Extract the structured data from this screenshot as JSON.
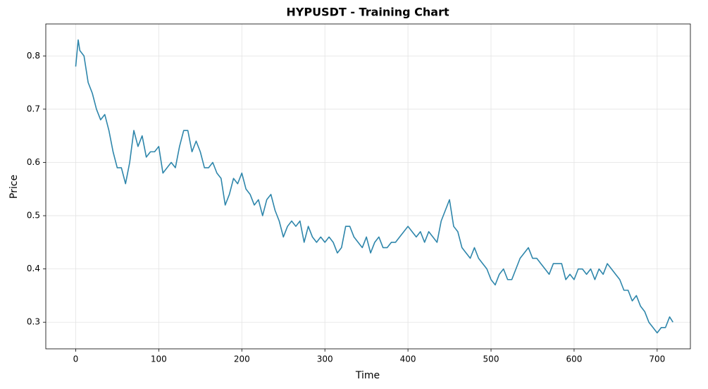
{
  "chart_data": {
    "type": "line",
    "title": "HYPUSDT - Training Chart",
    "xlabel": "Time",
    "ylabel": "Price",
    "x": [
      0,
      3,
      5,
      10,
      15,
      20,
      25,
      30,
      35,
      40,
      45,
      50,
      55,
      60,
      65,
      70,
      75,
      80,
      85,
      90,
      95,
      100,
      105,
      110,
      115,
      120,
      125,
      130,
      135,
      140,
      145,
      150,
      155,
      160,
      165,
      170,
      175,
      180,
      185,
      190,
      195,
      200,
      205,
      210,
      215,
      220,
      225,
      230,
      235,
      240,
      245,
      250,
      255,
      260,
      265,
      270,
      275,
      280,
      285,
      290,
      295,
      300,
      305,
      310,
      315,
      320,
      325,
      330,
      335,
      340,
      345,
      350,
      355,
      360,
      365,
      370,
      375,
      380,
      385,
      390,
      395,
      400,
      405,
      410,
      415,
      420,
      425,
      430,
      435,
      440,
      445,
      450,
      455,
      460,
      465,
      470,
      475,
      480,
      485,
      490,
      495,
      500,
      505,
      510,
      515,
      520,
      525,
      530,
      535,
      540,
      545,
      550,
      555,
      560,
      565,
      570,
      575,
      580,
      585,
      590,
      595,
      600,
      605,
      610,
      615,
      620,
      625,
      630,
      635,
      640,
      645,
      650,
      655,
      660,
      665,
      670,
      675,
      680,
      685,
      690,
      695,
      700,
      705,
      710,
      715,
      719
    ],
    "series": [
      {
        "name": "Price",
        "color": "#2e86ab",
        "values": [
          0.78,
          0.83,
          0.81,
          0.8,
          0.75,
          0.73,
          0.7,
          0.68,
          0.69,
          0.66,
          0.62,
          0.59,
          0.59,
          0.56,
          0.6,
          0.66,
          0.63,
          0.65,
          0.61,
          0.62,
          0.62,
          0.63,
          0.58,
          0.59,
          0.6,
          0.59,
          0.63,
          0.66,
          0.66,
          0.62,
          0.64,
          0.62,
          0.59,
          0.59,
          0.6,
          0.58,
          0.57,
          0.52,
          0.54,
          0.57,
          0.56,
          0.58,
          0.55,
          0.54,
          0.52,
          0.53,
          0.5,
          0.53,
          0.54,
          0.51,
          0.49,
          0.46,
          0.48,
          0.49,
          0.48,
          0.49,
          0.45,
          0.48,
          0.46,
          0.45,
          0.46,
          0.45,
          0.46,
          0.45,
          0.43,
          0.44,
          0.48,
          0.48,
          0.46,
          0.45,
          0.44,
          0.46,
          0.43,
          0.45,
          0.46,
          0.44,
          0.44,
          0.45,
          0.45,
          0.46,
          0.47,
          0.48,
          0.47,
          0.46,
          0.47,
          0.45,
          0.47,
          0.46,
          0.45,
          0.49,
          0.51,
          0.53,
          0.48,
          0.47,
          0.44,
          0.43,
          0.42,
          0.44,
          0.42,
          0.41,
          0.4,
          0.38,
          0.37,
          0.39,
          0.4,
          0.38,
          0.38,
          0.4,
          0.42,
          0.43,
          0.44,
          0.42,
          0.42,
          0.41,
          0.4,
          0.39,
          0.41,
          0.41,
          0.41,
          0.38,
          0.39,
          0.38,
          0.4,
          0.4,
          0.39,
          0.4,
          0.38,
          0.4,
          0.39,
          0.41,
          0.4,
          0.39,
          0.38,
          0.36,
          0.36,
          0.34,
          0.35,
          0.33,
          0.32,
          0.3,
          0.29,
          0.28,
          0.29,
          0.29,
          0.31,
          0.3
        ]
      }
    ],
    "xlim": [
      -36,
      740
    ],
    "ylim": [
      0.25,
      0.86
    ],
    "xticks": [
      0,
      100,
      200,
      300,
      400,
      500,
      600,
      700
    ],
    "yticks": [
      0.3,
      0.4,
      0.5,
      0.6,
      0.7,
      0.8
    ],
    "grid": true
  }
}
